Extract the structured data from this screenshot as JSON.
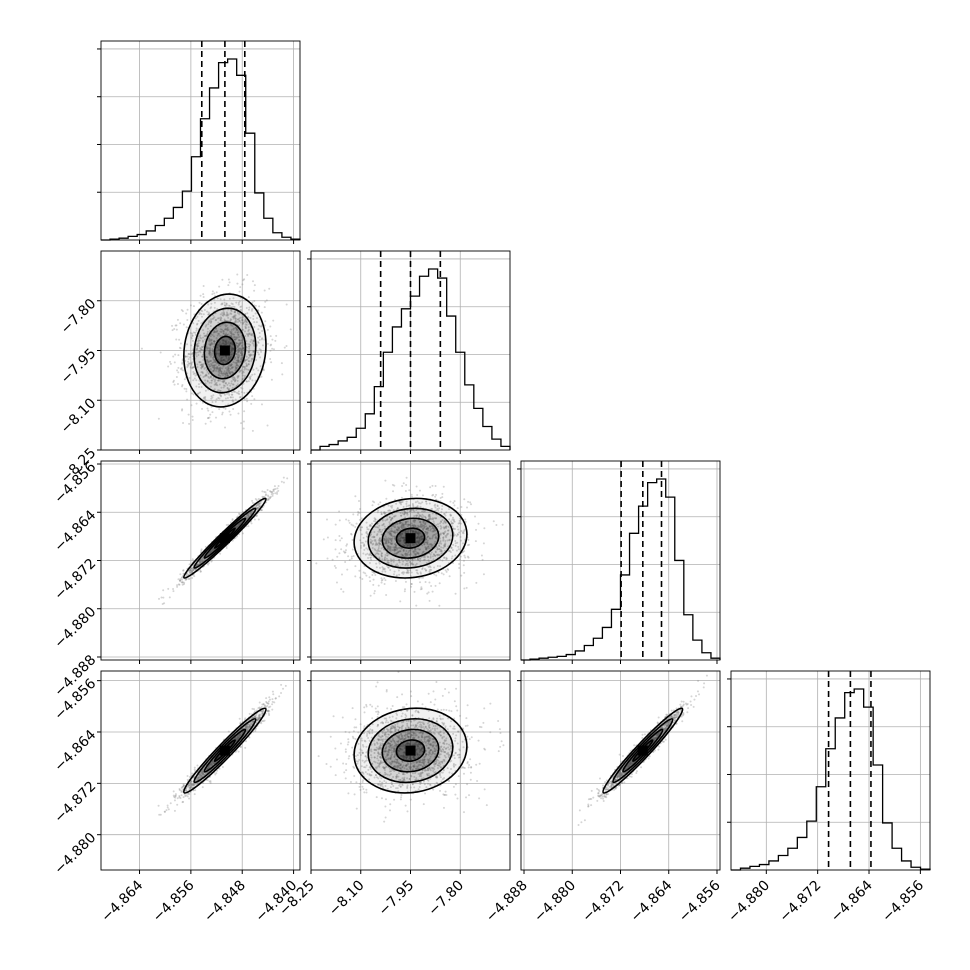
{
  "chart_data": {
    "type": "corner",
    "n_params": 4,
    "grid": true,
    "labels": [],
    "colors": {
      "hist_line": "#000000",
      "quantile_line": "#000000",
      "contour_line": "#000000",
      "density_fill": "#000000",
      "scatter": "#888888",
      "grid": "#b0b0b0"
    },
    "params": [
      {
        "range": [
          -4.87,
          -4.839
        ],
        "ticks": [
          "−4.864",
          "−4.856",
          "−4.848",
          "−4.840"
        ],
        "tick_values": [
          -4.864,
          -4.856,
          -4.848,
          -4.84
        ],
        "quantiles": [
          -4.8543,
          -4.8507,
          -4.8476
        ],
        "mode": -4.8507,
        "sigma": 0.0032,
        "hist_heights": [
          0.0,
          0.005,
          0.01,
          0.02,
          0.03,
          0.05,
          0.08,
          0.12,
          0.18,
          0.27,
          0.46,
          0.67,
          0.84,
          0.98,
          1.0,
          0.91,
          0.59,
          0.26,
          0.12,
          0.04,
          0.015,
          0.005
        ]
      },
      {
        "range": [
          -8.25,
          -7.65
        ],
        "ticks": [
          "−8.25",
          "−8.10",
          "−7.95",
          "−7.80"
        ],
        "tick_values": [
          -8.25,
          -8.1,
          -7.95,
          -7.8
        ],
        "quantiles": [
          -8.04,
          -7.95,
          -7.86
        ],
        "mode": -7.95,
        "sigma": 0.085,
        "hist_heights": [
          0.0,
          0.02,
          0.03,
          0.05,
          0.07,
          0.12,
          0.2,
          0.35,
          0.54,
          0.68,
          0.78,
          0.85,
          0.96,
          1.0,
          0.95,
          0.74,
          0.54,
          0.36,
          0.23,
          0.13,
          0.06,
          0.02
        ]
      },
      {
        "range": [
          -4.8885,
          -4.8555
        ],
        "ticks": [
          "−4.888",
          "−4.880",
          "−4.872",
          "−4.864",
          "−4.856"
        ],
        "tick_values": [
          -4.888,
          -4.88,
          -4.872,
          -4.864,
          -4.856
        ],
        "quantiles": [
          -4.8719,
          -4.8683,
          -4.8652
        ],
        "mode": -4.8683,
        "sigma": 0.0033,
        "hist_heights": [
          0.0,
          0.005,
          0.01,
          0.015,
          0.02,
          0.03,
          0.05,
          0.08,
          0.12,
          0.18,
          0.28,
          0.47,
          0.7,
          0.85,
          0.98,
          1.0,
          0.9,
          0.55,
          0.25,
          0.11,
          0.04,
          0.01
        ]
      },
      {
        "range": [
          -4.8855,
          -4.8545
        ],
        "ticks": [
          "−4.880",
          "−4.872",
          "−4.864",
          "−4.856"
        ],
        "tick_values": [
          -4.88,
          -4.872,
          -4.864,
          -4.856
        ],
        "quantiles": [
          -4.8703,
          -4.8669,
          -4.8637
        ],
        "mode": -4.8669,
        "sigma": 0.0033,
        "hist_heights": [
          0.0,
          0.01,
          0.02,
          0.03,
          0.05,
          0.08,
          0.12,
          0.18,
          0.27,
          0.46,
          0.67,
          0.84,
          0.98,
          1.0,
          0.9,
          0.58,
          0.26,
          0.12,
          0.05,
          0.015,
          0.005
        ]
      }
    ],
    "correlations": [
      [
        1.0,
        0.1,
        0.98,
        0.97
      ],
      [
        0.1,
        1.0,
        0.1,
        0.1
      ],
      [
        0.98,
        0.1,
        1.0,
        0.97
      ],
      [
        0.97,
        0.1,
        0.97,
        1.0
      ]
    ],
    "contour_levels": [
      0.5,
      1.0,
      1.5,
      2.0
    ]
  }
}
